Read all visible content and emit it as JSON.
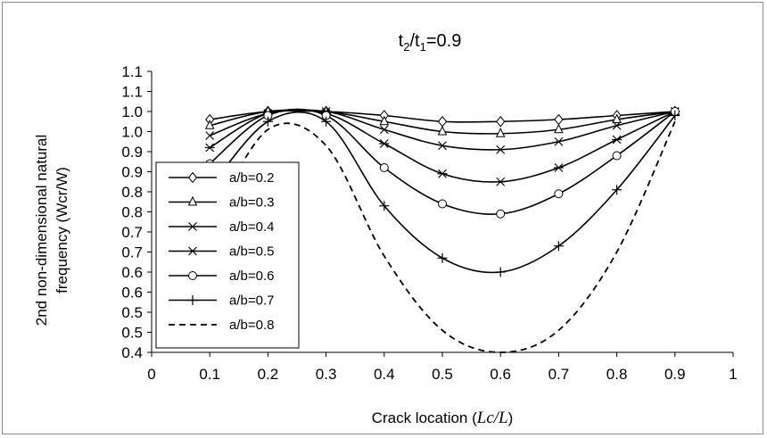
{
  "chart_data": {
    "type": "line",
    "title": {
      "t": "t",
      "sub1": "2",
      "slash": "/t",
      "sub2": "1",
      "rest": "=0.9"
    },
    "xlabel": {
      "text": "Crack location (",
      "math": "Lc/L",
      "close": ")"
    },
    "ylabel": {
      "line1": "2nd non-dimensional natural",
      "line2": "frequency (Wcr/W)"
    },
    "xlim": [
      0,
      1
    ],
    "ylim": [
      0.4,
      1.1
    ],
    "x_ticks": [
      "0",
      "0.1",
      "0.2",
      "0.3",
      "0.4",
      "0.5",
      "0.6",
      "0.7",
      "0.8",
      "0.9",
      "1"
    ],
    "y_ticks": [
      "0.4",
      "0.5",
      "0.5",
      "0.6",
      "0.6",
      "0.7",
      "0.7",
      "0.8",
      "0.8",
      "0.9",
      "0.9",
      "1.0",
      "1.0",
      "1.1",
      "1.1"
    ],
    "grid": false,
    "legend_position": "left",
    "series": [
      {
        "name": "a/b=0.2",
        "marker": "diamond",
        "style": "solid",
        "x": [
          0.1,
          0.2,
          0.3,
          0.4,
          0.5,
          0.6,
          0.7,
          0.8,
          0.9
        ],
        "y": [
          0.98,
          1.0,
          1.0,
          0.99,
          0.975,
          0.975,
          0.98,
          0.99,
          1.0
        ]
      },
      {
        "name": "a/b=0.3",
        "marker": "triangle",
        "style": "solid",
        "x": [
          0.1,
          0.2,
          0.3,
          0.4,
          0.5,
          0.6,
          0.7,
          0.8,
          0.9
        ],
        "y": [
          0.965,
          1.0,
          1.0,
          0.975,
          0.95,
          0.945,
          0.955,
          0.98,
          1.0
        ]
      },
      {
        "name": "a/b=0.4",
        "marker": "x",
        "style": "solid",
        "x": [
          0.1,
          0.2,
          0.3,
          0.4,
          0.5,
          0.6,
          0.7,
          0.8,
          0.9
        ],
        "y": [
          0.94,
          0.995,
          1.0,
          0.955,
          0.915,
          0.905,
          0.925,
          0.965,
          1.0
        ]
      },
      {
        "name": "a/b=0.5",
        "marker": "star",
        "style": "solid",
        "x": [
          0.1,
          0.2,
          0.3,
          0.4,
          0.5,
          0.6,
          0.7,
          0.8,
          0.9
        ],
        "y": [
          0.91,
          0.995,
          0.995,
          0.92,
          0.845,
          0.825,
          0.86,
          0.93,
          1.0
        ]
      },
      {
        "name": "a/b=0.6",
        "marker": "circle",
        "style": "solid",
        "x": [
          0.1,
          0.2,
          0.3,
          0.4,
          0.5,
          0.6,
          0.7,
          0.8,
          0.9
        ],
        "y": [
          0.87,
          0.99,
          0.99,
          0.86,
          0.77,
          0.745,
          0.795,
          0.89,
          1.0
        ]
      },
      {
        "name": "a/b=0.7",
        "marker": "plus",
        "style": "solid",
        "x": [
          0.1,
          0.2,
          0.3,
          0.4,
          0.5,
          0.6,
          0.7,
          0.8,
          0.9
        ],
        "y": [
          0.81,
          0.975,
          0.975,
          0.765,
          0.635,
          0.6,
          0.665,
          0.805,
          0.99
        ]
      },
      {
        "name": "a/b=0.8",
        "marker": "none",
        "style": "dashed",
        "x": [
          0.1,
          0.2,
          0.3,
          0.4,
          0.5,
          0.6,
          0.7,
          0.8,
          0.9
        ],
        "y": [
          0.72,
          0.955,
          0.915,
          0.64,
          0.455,
          0.4,
          0.455,
          0.65,
          0.975
        ]
      }
    ]
  }
}
